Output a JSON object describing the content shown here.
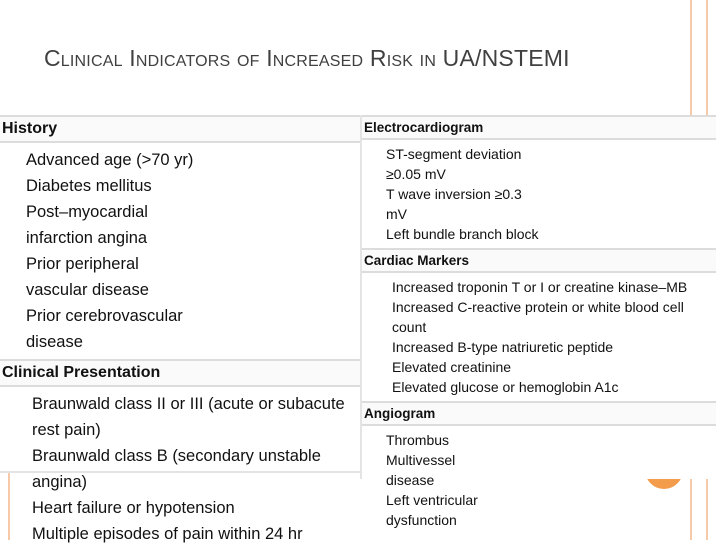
{
  "title": "Clinical Indicators of Increased Risk in UA/NSTEMI",
  "left": [
    {
      "heading": "History",
      "items": [
        "Advanced age (>70 yr)",
        "Diabetes mellitus",
        "Post–myocardial infarction angina",
        "Prior peripheral vascular disease",
        "Prior cerebrovascular disease"
      ]
    },
    {
      "heading": "Clinical Presentation",
      "items": [
        "Braunwald class II or III (acute or subacute rest pain)",
        "Braunwald class B (secondary unstable angina)",
        "Heart failure or hypotension",
        "Multiple episodes of pain within 24 hr"
      ]
    }
  ],
  "right": [
    {
      "heading": "Electrocardiogram",
      "items": [
        "ST-segment deviation ≥0.05 mV",
        "T wave inversion ≥0.3 mV",
        "Left bundle branch block"
      ]
    },
    {
      "heading": "Cardiac Markers",
      "items": [
        "Increased troponin T or I or creatine kinase–MB",
        "Increased C-reactive protein or white blood cell count",
        "Increased B-type natriuretic peptide",
        "Elevated creatinine",
        "Elevated glucose or hemoglobin A1c"
      ]
    },
    {
      "heading": "Angiogram",
      "items": [
        "Thrombus",
        "Multivessel disease",
        "Left ventricular dysfunction"
      ]
    }
  ]
}
